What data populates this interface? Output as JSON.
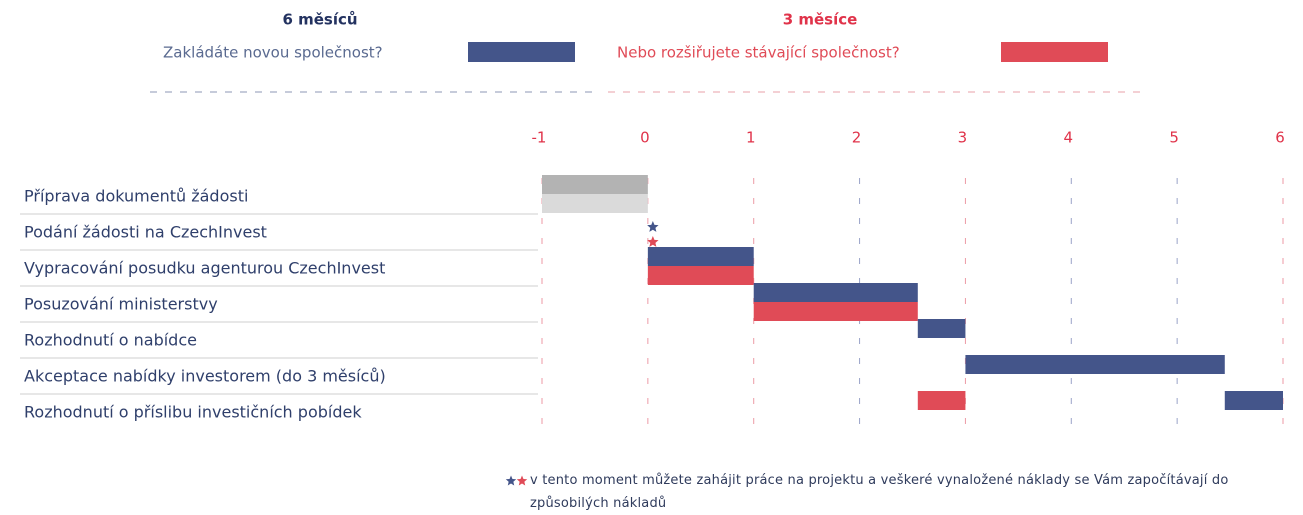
{
  "chart_data": {
    "type": "gantt",
    "tasks": [
      "Příprava dokumentů žádosti",
      "Podání žádosti na CzechInvest",
      "Vypracování posudku agenturou CzechInvest",
      "Posuzování ministerstvy",
      "Rozhodnutí o nabídce",
      "Akceptace nabídky investorem (do 3 měsíců)",
      "Rozhodnutí o příslibu investičních pobídek"
    ],
    "series": [
      {
        "name": "Zakládáte novou společnost?",
        "duration_label": "6 měsíců",
        "color": "#44558a",
        "values": [
          [
            -1,
            0
          ],
          0,
          [
            0,
            1
          ],
          [
            1,
            2.55
          ],
          [
            2.55,
            3
          ],
          [
            3,
            5.45
          ],
          [
            5.45,
            6
          ]
        ],
        "colors": [
          "#b3b3b3",
          null,
          null,
          null,
          null,
          null,
          null
        ]
      },
      {
        "name": "Nebo rozšiřujete stávající společnost?",
        "duration_label": "3 měsíce",
        "color": "#e04b57",
        "values": [
          [
            -1,
            0
          ],
          0,
          [
            0,
            1
          ],
          [
            1,
            2.55
          ],
          null,
          null,
          [
            2.55,
            3
          ]
        ],
        "colors": [
          "#dadada",
          null,
          null,
          null,
          null,
          null,
          null
        ]
      }
    ],
    "xlim": [
      -1,
      6
    ],
    "xticks": [
      -1,
      0,
      1,
      2,
      3,
      4,
      5,
      6
    ],
    "grid": true,
    "note": "v tento moment můžete zahájit práce na projektu a veškeré vynaložené náklady se Vám započítávají do způsobilých nákladů"
  }
}
